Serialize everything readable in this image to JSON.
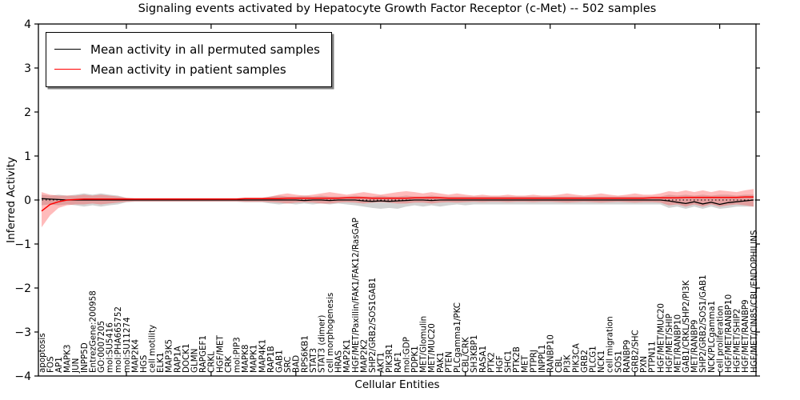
{
  "chart_data": {
    "type": "line",
    "title": "Signaling events activated by Hepatocyte Growth Factor Receptor (c-Met) -- 502 samples",
    "xlabel": "Cellular Entities",
    "ylabel": "Inferred Activity",
    "ylim": [
      -4,
      4
    ],
    "yticks": [
      4,
      3,
      2,
      1,
      0,
      -1,
      -2,
      -3,
      -4
    ],
    "xtick_interval": 10,
    "zero_line": true,
    "grid": false,
    "legend_position": "upper left",
    "categories": [
      "apoptosis",
      "FOS",
      "AP1",
      "MAPK3",
      "JUN",
      "INPP5D",
      "EntrezGene:200958",
      "GO:0007205",
      "mol:SU5416",
      "mol:PHA665752",
      "mol:SU11274",
      "MAP2K4",
      "HGS",
      "cell motility",
      "ELK1",
      "MAP3K5",
      "RAP1A",
      "DOCK1",
      "GLMN",
      "RAPGEF1",
      "CRKL",
      "HGF/MET",
      "CRK",
      "mol:PIP3",
      "MAPK8",
      "MAPK1",
      "MAP4K1",
      "RAP1B",
      "GAB1",
      "SRC",
      "BAD",
      "RPS6KB1",
      "STAT3",
      "STAT3 (dimer)",
      "cell morphogenesis",
      "HRAS",
      "MAP2K1",
      "HGF/MET/Paxillin/FAK1/FAK12/RasGAP",
      "MAP2K2",
      "SHP2/GRB2/SOS1GAB1",
      "AKT1",
      "PIK3R1",
      "RAF1",
      "mol:GDP",
      "PDPK1",
      "MET/Glomulin",
      "MET/MUC20",
      "PAK1",
      "PTEN",
      "PLCgamma1/PKC",
      "CBL/CRK",
      "SH3KBP1",
      "RASA1",
      "PTK2",
      "HGF",
      "SHC1",
      "PTK2B",
      "MET",
      "PTPRJ",
      "INPPL1",
      "RANBP10",
      "CBL",
      "PI3K",
      "PIK3CA",
      "GRB2",
      "PLCG1",
      "NCK1",
      "cell migration",
      "SOS1",
      "RANBP9",
      "GRB2/SHC",
      "PXN",
      "PTPN11",
      "HGF/MET/MUC20",
      "HGF/MET/SHIP",
      "MET/RANBP10",
      "GAB1/CRKL/SHP2/PI3K",
      "MET/RANBP9",
      "SHP2/GRB2/SOS1/GAB1",
      "NCK/PLCgamma1",
      "cell proliferation",
      "HGF/MET/RANBP10",
      "HGF/MET/SHIP2",
      "HGF/MET/RANBP9",
      "HGF/MET/CIN85/CBL/ENDOPHILINS"
    ],
    "series": [
      {
        "name": "Mean activity in all permuted samples",
        "color": "#000000",
        "band_color": "rgba(130,130,130,0.35)",
        "values": [
          0.03,
          0.02,
          0.01,
          0,
          0,
          0,
          0,
          0,
          0,
          0,
          0,
          0,
          0,
          0,
          0,
          0,
          0,
          0,
          0,
          0,
          0,
          0,
          0,
          0,
          0,
          0,
          0,
          0,
          0,
          0,
          0,
          -0.01,
          0,
          0,
          -0.01,
          0,
          0,
          0,
          -0.02,
          -0.03,
          -0.02,
          -0.03,
          -0.02,
          -0.01,
          0,
          0,
          -0.01,
          0,
          0,
          0,
          0,
          0,
          0,
          0,
          0,
          0,
          0,
          0,
          0,
          0,
          0,
          0,
          0,
          0,
          0,
          0,
          0,
          0,
          0,
          0,
          0,
          0,
          0,
          0,
          -0.02,
          -0.05,
          -0.08,
          -0.04,
          -0.09,
          -0.05,
          -0.1,
          -0.06,
          -0.04,
          -0.02,
          0
        ],
        "band_upper": [
          0.12,
          0.1,
          0.12,
          0.1,
          0.12,
          0.15,
          0.12,
          0.15,
          0.12,
          0.1,
          0.05,
          0.04,
          0.04,
          0.04,
          0.04,
          0.04,
          0.04,
          0.04,
          0.04,
          0.04,
          0.04,
          0.04,
          0.04,
          0.04,
          0.05,
          0.05,
          0.05,
          0.08,
          0.1,
          0.08,
          0.08,
          0.1,
          0.08,
          0.1,
          0.08,
          0.08,
          0.08,
          0.1,
          0.08,
          0.08,
          0.1,
          0.08,
          0.08,
          0.1,
          0.08,
          0.08,
          0.1,
          0.08,
          0.08,
          0.08,
          0.08,
          0.08,
          0.08,
          0.08,
          0.08,
          0.08,
          0.08,
          0.08,
          0.08,
          0.08,
          0.08,
          0.08,
          0.08,
          0.08,
          0.08,
          0.08,
          0.08,
          0.08,
          0.08,
          0.08,
          0.08,
          0.08,
          0.08,
          0.08,
          0.12,
          0.1,
          0.12,
          0.1,
          0.12,
          0.1,
          0.12,
          0.12,
          0.1,
          0.12,
          0.12
        ],
        "band_lower": [
          -0.12,
          -0.1,
          -0.12,
          -0.1,
          -0.12,
          -0.15,
          -0.12,
          -0.15,
          -0.12,
          -0.1,
          -0.05,
          -0.04,
          -0.04,
          -0.04,
          -0.04,
          -0.04,
          -0.04,
          -0.04,
          -0.04,
          -0.04,
          -0.04,
          -0.04,
          -0.04,
          -0.04,
          -0.05,
          -0.05,
          -0.05,
          -0.08,
          -0.1,
          -0.08,
          -0.1,
          -0.08,
          -0.1,
          -0.08,
          -0.1,
          -0.08,
          -0.1,
          -0.12,
          -0.15,
          -0.18,
          -0.2,
          -0.18,
          -0.2,
          -0.15,
          -0.12,
          -0.15,
          -0.12,
          -0.15,
          -0.12,
          -0.1,
          -0.12,
          -0.1,
          -0.1,
          -0.1,
          -0.1,
          -0.1,
          -0.1,
          -0.1,
          -0.1,
          -0.1,
          -0.1,
          -0.1,
          -0.1,
          -0.1,
          -0.1,
          -0.1,
          -0.1,
          -0.1,
          -0.1,
          -0.1,
          -0.1,
          -0.1,
          -0.1,
          -0.1,
          -0.18,
          -0.15,
          -0.2,
          -0.15,
          -0.2,
          -0.15,
          -0.2,
          -0.18,
          -0.15,
          -0.15,
          -0.15
        ]
      },
      {
        "name": "Mean activity in patient samples",
        "color": "#ff0000",
        "band_color": "rgba(255,60,60,0.35)",
        "values": [
          -0.25,
          -0.1,
          -0.04,
          0,
          0.01,
          0.02,
          0.02,
          0.02,
          0.02,
          0.02,
          0.02,
          0.02,
          0.02,
          0.02,
          0.02,
          0.02,
          0.02,
          0.02,
          0.02,
          0.02,
          0.02,
          0.02,
          0.02,
          0.02,
          0.03,
          0.03,
          0.03,
          0.03,
          0.03,
          0.04,
          0.04,
          0.04,
          0.04,
          0.04,
          0.04,
          0.04,
          0.05,
          0.05,
          0.05,
          0.04,
          0.04,
          0.04,
          0.04,
          0.04,
          0.05,
          0.05,
          0.05,
          0.05,
          0.04,
          0.04,
          0.04,
          0.04,
          0.04,
          0.04,
          0.04,
          0.04,
          0.04,
          0.04,
          0.04,
          0.04,
          0.04,
          0.04,
          0.04,
          0.04,
          0.04,
          0.04,
          0.04,
          0.04,
          0.04,
          0.04,
          0.04,
          0.04,
          0.05,
          0.05,
          0.05,
          0.05,
          0.06,
          0.06,
          0.06,
          0.06,
          0.06,
          0.06,
          0.06,
          0.07,
          0.07
        ],
        "band_upper": [
          0.18,
          0.12,
          0.1,
          0.1,
          0.1,
          0.12,
          0.1,
          0.12,
          0.1,
          0.08,
          0.05,
          0.04,
          0.04,
          0.04,
          0.04,
          0.04,
          0.04,
          0.04,
          0.04,
          0.04,
          0.04,
          0.04,
          0.04,
          0.04,
          0.05,
          0.05,
          0.05,
          0.08,
          0.12,
          0.15,
          0.12,
          0.1,
          0.12,
          0.15,
          0.18,
          0.15,
          0.12,
          0.15,
          0.18,
          0.15,
          0.12,
          0.15,
          0.18,
          0.2,
          0.18,
          0.15,
          0.18,
          0.15,
          0.12,
          0.15,
          0.12,
          0.1,
          0.12,
          0.1,
          0.1,
          0.12,
          0.1,
          0.1,
          0.12,
          0.1,
          0.1,
          0.12,
          0.15,
          0.12,
          0.1,
          0.12,
          0.15,
          0.12,
          0.1,
          0.12,
          0.15,
          0.12,
          0.12,
          0.15,
          0.2,
          0.18,
          0.22,
          0.18,
          0.22,
          0.18,
          0.22,
          0.2,
          0.18,
          0.22,
          0.25
        ],
        "band_lower": [
          -0.62,
          -0.35,
          -0.18,
          -0.12,
          -0.1,
          -0.1,
          -0.08,
          -0.1,
          -0.08,
          -0.06,
          -0.04,
          -0.03,
          -0.03,
          -0.03,
          -0.03,
          -0.03,
          -0.03,
          -0.03,
          -0.03,
          -0.03,
          -0.03,
          -0.03,
          -0.03,
          -0.03,
          -0.04,
          -0.04,
          -0.04,
          -0.05,
          -0.06,
          -0.08,
          -0.06,
          -0.05,
          -0.06,
          -0.08,
          -0.08,
          -0.06,
          -0.05,
          -0.06,
          -0.08,
          -0.06,
          -0.05,
          -0.06,
          -0.08,
          -0.08,
          -0.06,
          -0.06,
          -0.08,
          -0.06,
          -0.05,
          -0.06,
          -0.05,
          -0.04,
          -0.05,
          -0.04,
          -0.04,
          -0.05,
          -0.04,
          -0.04,
          -0.05,
          -0.04,
          -0.04,
          -0.05,
          -0.06,
          -0.05,
          -0.04,
          -0.05,
          -0.06,
          -0.05,
          -0.04,
          -0.05,
          -0.06,
          -0.05,
          -0.05,
          -0.06,
          -0.12,
          -0.1,
          -0.15,
          -0.1,
          -0.15,
          -0.1,
          -0.15,
          -0.12,
          -0.1,
          -0.12,
          -0.15
        ]
      }
    ]
  }
}
